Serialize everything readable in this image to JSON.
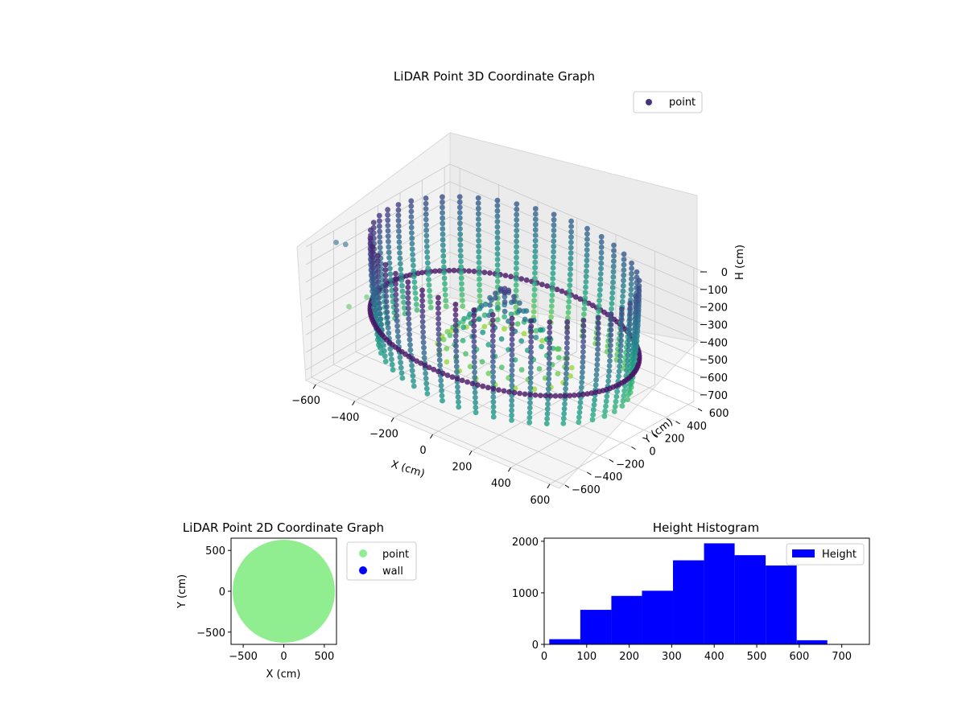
{
  "chart_data": [
    {
      "type": "scatter3d",
      "title": "LiDAR Point 3D Coordinate Graph",
      "xlabel": "X (cm)",
      "ylabel": "Y (cm)",
      "zlabel": "H (cm)",
      "xticks": [
        "−600",
        "−400",
        "−200",
        "0",
        "200",
        "400",
        "600"
      ],
      "yticks": [
        "−600",
        "−400",
        "−200",
        "0",
        "200",
        "400",
        "600"
      ],
      "zticks": [
        "0",
        "100",
        "200",
        "300",
        "400",
        "500",
        "600",
        "700"
      ],
      "xlim": [
        -650,
        650
      ],
      "ylim": [
        -650,
        650
      ],
      "zlim": [
        0,
        760
      ],
      "z_inverted": true,
      "grid": true,
      "legend": {
        "placement": "top-right",
        "entries": [
          {
            "label": "point",
            "color": "#46317e"
          }
        ]
      },
      "colormap": "viridis",
      "shape": {
        "wall_radius": 600,
        "wall_h_top": 0,
        "wall_h_bottom": 620,
        "wall_ribs": 44,
        "center_mound_radius": 300,
        "center_mound_h_top": 150,
        "center_mound_h_bottom": 560,
        "outliers": [
          {
            "x": -620,
            "y": -430,
            "h": 40
          },
          {
            "x": -600,
            "y": -380,
            "h": 60
          },
          {
            "x": -560,
            "y": -420,
            "h": 380
          },
          {
            "x": -520,
            "y": -330,
            "h": 340
          }
        ]
      }
    },
    {
      "type": "scatter",
      "title": "LiDAR Point 2D Coordinate Graph",
      "xlabel": "X (cm)",
      "ylabel": "Y (cm)",
      "xticks": [
        "−500",
        "0",
        "500"
      ],
      "yticks": [
        "−500",
        "0",
        "500"
      ],
      "xlim": [
        -650,
        650
      ],
      "ylim": [
        -650,
        650
      ],
      "legend": {
        "placement": "outside-right",
        "entries": [
          {
            "label": "point",
            "color": "#90ee90"
          },
          {
            "label": "wall",
            "color": "#0000ff"
          }
        ]
      },
      "series": [
        {
          "name": "point",
          "color": "#90ee90",
          "shape": "disc",
          "radius": 630,
          "center": [
            0,
            0
          ]
        },
        {
          "name": "wall",
          "color": "#0000ff",
          "values": []
        }
      ]
    },
    {
      "type": "bar",
      "title": "Height Histogram",
      "xticks": [
        "0",
        "100",
        "200",
        "300",
        "400",
        "500",
        "600",
        "700"
      ],
      "yticks": [
        "0",
        "1000",
        "2000"
      ],
      "xlim": [
        0,
        765
      ],
      "ylim": [
        0,
        2060
      ],
      "legend": {
        "placement": "top-right",
        "entries": [
          {
            "label": "Height",
            "color": "#0000ff"
          }
        ]
      },
      "series": [
        {
          "name": "Height",
          "color": "#0000ff"
        }
      ],
      "bins": [
        {
          "x0": 12,
          "x1": 85,
          "value": 100
        },
        {
          "x0": 85,
          "x1": 158,
          "value": 670
        },
        {
          "x0": 158,
          "x1": 230,
          "value": 940
        },
        {
          "x0": 230,
          "x1": 303,
          "value": 1040
        },
        {
          "x0": 303,
          "x1": 376,
          "value": 1630
        },
        {
          "x0": 376,
          "x1": 448,
          "value": 1960
        },
        {
          "x0": 448,
          "x1": 521,
          "value": 1730
        },
        {
          "x0": 521,
          "x1": 594,
          "value": 1530
        },
        {
          "x0": 594,
          "x1": 666,
          "value": 80
        }
      ]
    }
  ]
}
